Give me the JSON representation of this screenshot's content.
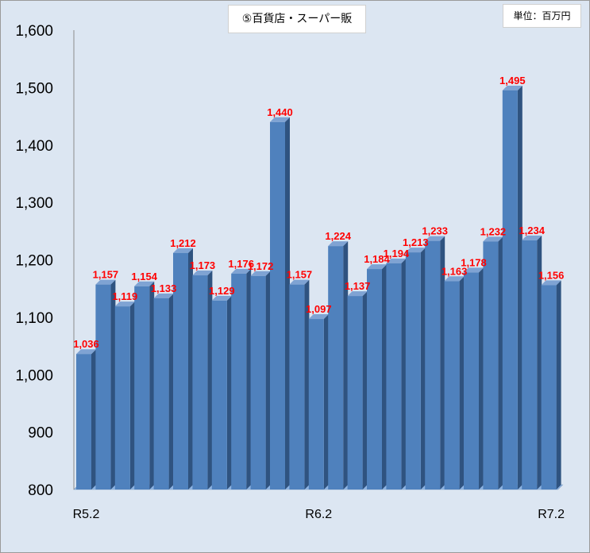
{
  "chart_data": {
    "type": "bar",
    "title": "⑤百貨店・スーパー販",
    "unit": "単位：百万円",
    "ylim": [
      800,
      1600
    ],
    "y_ticks": [
      "800",
      "900",
      "1,000",
      "1,100",
      "1,200",
      "1,300",
      "1,400",
      "1,500",
      "1,600"
    ],
    "x_tick_labels": [
      "R5.2",
      "R6.2",
      "R7.2"
    ],
    "x_tick_label_index": [
      0,
      12,
      24
    ],
    "values": [
      1036,
      1157,
      1119,
      1154,
      1133,
      1212,
      1173,
      1129,
      1176,
      1172,
      1440,
      1157,
      1097,
      1224,
      1137,
      1184,
      1194,
      1213,
      1233,
      1163,
      1178,
      1232,
      1495,
      1234,
      1156
    ],
    "value_labels": [
      "1,036",
      "1,157",
      "1,119",
      "1,154",
      "1,133",
      "1,212",
      "1,173",
      "1,129",
      "1,176",
      "1,172",
      "1,440",
      "1,157",
      "1,097",
      "1,224",
      "1,137",
      "1,184",
      "1,194",
      "1,213",
      "1,233",
      "1,163",
      "1,178",
      "1,232",
      "1,495",
      "1,234",
      "1,156"
    ],
    "grid": false,
    "legend": "none",
    "colors": {
      "bar_front": "#4f81bd",
      "bar_side": "#2f5380",
      "bar_top": "#7fa3d3",
      "floor": "#8eb4e3",
      "label": "#ff0000",
      "background": "#dce6f2"
    }
  }
}
